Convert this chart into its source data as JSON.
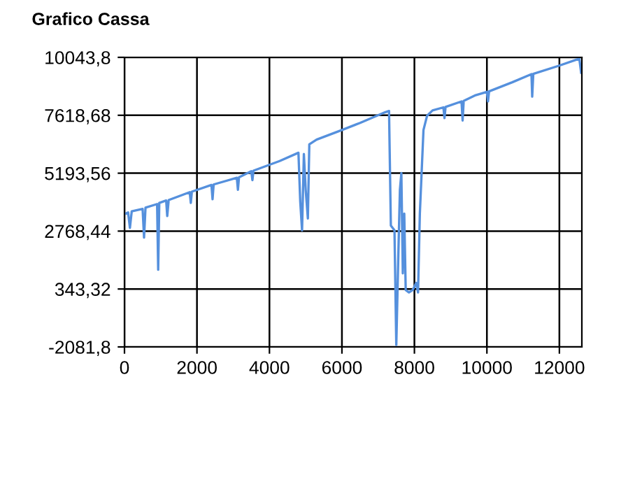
{
  "chart_data": {
    "type": "line",
    "title": "Grafico Cassa",
    "xlim": [
      0,
      12620
    ],
    "xticks": [
      0,
      2000,
      4000,
      6000,
      8000,
      10000,
      12000
    ],
    "ylim": [
      -2081.8,
      10043.8
    ],
    "yticks": [
      {
        "value": -2081.8,
        "label": "-2081,8"
      },
      {
        "value": 343.32,
        "label": "343,32"
      },
      {
        "value": 2768.44,
        "label": "2768,44"
      },
      {
        "value": 5193.56,
        "label": "5193,56"
      },
      {
        "value": 7618.68,
        "label": "7618,68"
      },
      {
        "value": 10043.8,
        "label": "10043,8"
      }
    ],
    "grid": true,
    "marker": "none",
    "line_style": "solid",
    "series": [
      {
        "color": "#5590dd",
        "x": [
          0,
          100,
          150,
          200,
          500,
          540,
          580,
          900,
          930,
          960,
          1150,
          1180,
          1220,
          1800,
          1830,
          1860,
          2400,
          2430,
          2460,
          3100,
          3130,
          3160,
          3500,
          3530,
          3560,
          4280,
          4800,
          4850,
          4900,
          4950,
          5000,
          5060,
          5100,
          5300,
          6000,
          6500,
          7200,
          7300,
          7350,
          7450,
          7500,
          7560,
          7600,
          7640,
          7680,
          7720,
          7760,
          7850,
          7950,
          8050,
          8100,
          8150,
          8250,
          8350,
          8500,
          8800,
          8830,
          8860,
          9300,
          9330,
          9360,
          9690,
          10000,
          10030,
          10060,
          10700,
          11230,
          11250,
          11280,
          12000,
          12550,
          12600
        ],
        "values": [
          3480,
          3550,
          2900,
          3600,
          3700,
          2500,
          3750,
          3900,
          1150,
          3950,
          4050,
          3400,
          4070,
          4400,
          3950,
          4420,
          4700,
          4100,
          4720,
          5000,
          4500,
          5020,
          5280,
          4900,
          5300,
          5700,
          6050,
          4000,
          2800,
          6000,
          4500,
          3300,
          6400,
          6600,
          7000,
          7300,
          7750,
          7800,
          3000,
          2800,
          -2000,
          2000,
          4500,
          5200,
          1000,
          3500,
          300,
          200,
          300,
          600,
          200,
          3500,
          7000,
          7600,
          7820,
          7950,
          7500,
          7970,
          8200,
          7400,
          8220,
          8460,
          8600,
          8200,
          8620,
          9000,
          9340,
          8400,
          9350,
          9700,
          9990,
          9400
        ]
      }
    ]
  }
}
